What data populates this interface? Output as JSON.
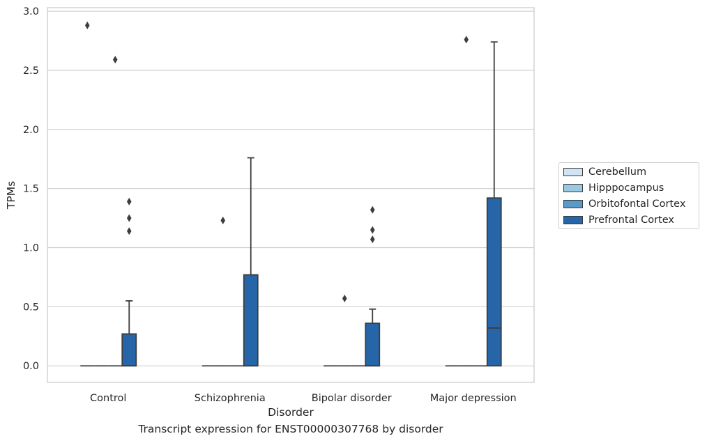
{
  "chart_data": {
    "type": "box",
    "title": "",
    "xlabel": "Disorder",
    "ylabel": "TPMs",
    "ylim": [
      -0.14,
      3.03
    ],
    "yticks": [
      "0.0",
      "0.5",
      "1.0",
      "1.5",
      "2.0",
      "2.5",
      "3.0"
    ],
    "grid": true,
    "legend_position": "right",
    "categories": [
      "Control",
      "Schizophrenia",
      "Bipolar disorder",
      "Major depression"
    ],
    "series": [
      {
        "name": "Cerebellum",
        "color": "#d2e3f3",
        "boxes": [
          {
            "q1": 0,
            "median": 0,
            "q3": 0,
            "whislo": 0,
            "whishi": 0,
            "fliers": [
              2.88
            ]
          },
          {
            "q1": 0,
            "median": 0,
            "q3": 0,
            "whislo": 0,
            "whishi": 0,
            "fliers": []
          },
          {
            "q1": 0,
            "median": 0,
            "q3": 0,
            "whislo": 0,
            "whishi": 0,
            "fliers": []
          },
          {
            "q1": 0,
            "median": 0,
            "q3": 0,
            "whislo": 0,
            "whishi": 0,
            "fliers": []
          }
        ]
      },
      {
        "name": "Hipppocampus",
        "color": "#9ac8e0",
        "boxes": [
          {
            "q1": 0,
            "median": 0,
            "q3": 0,
            "whislo": 0,
            "whishi": 0,
            "fliers": []
          },
          {
            "q1": 0,
            "median": 0,
            "q3": 0,
            "whislo": 0,
            "whishi": 0,
            "fliers": [
              1.23
            ]
          },
          {
            "q1": 0,
            "median": 0,
            "q3": 0,
            "whislo": 0,
            "whishi": 0,
            "fliers": [
              0.57
            ]
          },
          {
            "q1": 0,
            "median": 0,
            "q3": 0,
            "whislo": 0,
            "whishi": 0,
            "fliers": [
              2.76
            ]
          }
        ]
      },
      {
        "name": "Orbitofontal Cortex",
        "color": "#5a9ac8",
        "boxes": [
          {
            "q1": 0,
            "median": 0,
            "q3": 0,
            "whislo": 0,
            "whishi": 0,
            "fliers": [
              2.59
            ]
          },
          {
            "q1": 0,
            "median": 0,
            "q3": 0,
            "whislo": 0,
            "whishi": 0,
            "fliers": []
          },
          {
            "q1": 0,
            "median": 0,
            "q3": 0,
            "whislo": 0,
            "whishi": 0,
            "fliers": []
          },
          {
            "q1": 0,
            "median": 0,
            "q3": 0,
            "whislo": 0,
            "whishi": 0,
            "fliers": []
          }
        ]
      },
      {
        "name": "Prefrontal Cortex",
        "color": "#2565a8",
        "boxes": [
          {
            "q1": 0,
            "median": 0,
            "q3": 0.27,
            "whislo": 0,
            "whishi": 0.55,
            "fliers": [
              1.39,
              1.25,
              1.14
            ]
          },
          {
            "q1": 0,
            "median": 0,
            "q3": 0.77,
            "whislo": 0,
            "whishi": 1.76,
            "fliers": []
          },
          {
            "q1": 0,
            "median": 0,
            "q3": 0.36,
            "whislo": 0,
            "whishi": 0.48,
            "fliers": [
              1.32,
              1.15,
              1.07
            ]
          },
          {
            "q1": 0,
            "median": 0.32,
            "q3": 1.42,
            "whislo": 0,
            "whishi": 2.74,
            "fliers": []
          }
        ]
      }
    ]
  },
  "caption": "Transcript expression for ENST00000307768 by disorder"
}
